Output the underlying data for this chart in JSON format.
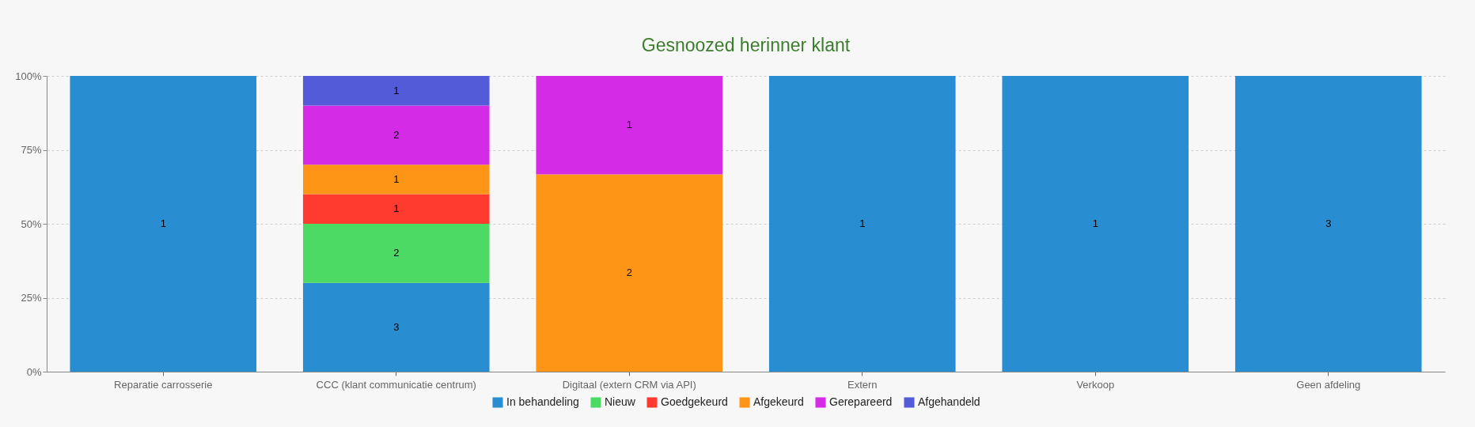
{
  "chart_data": {
    "type": "bar",
    "title": "Gesnoozed herinner klant",
    "categories": [
      "Reparatie carrosserie",
      "CCC (klant communicatie centrum)",
      "Digitaal (extern CRM via API)",
      "Extern",
      "Verkoop",
      "Geen afdeling"
    ],
    "stacked": true,
    "ylim": [
      0,
      100
    ],
    "yticks": [
      {
        "value": 0,
        "label": "0%"
      },
      {
        "value": 25,
        "label": "25%"
      },
      {
        "value": 50,
        "label": "50%"
      },
      {
        "value": 75,
        "label": "75%"
      },
      {
        "value": 100,
        "label": "100%"
      }
    ],
    "grid": "y",
    "legend": "bottom",
    "series": [
      {
        "name": "In behandeling",
        "color": "#288ed1",
        "values": [
          100,
          30,
          null,
          100,
          100,
          100
        ]
      },
      {
        "name": "Nieuw",
        "color": "#4cd964",
        "values": [
          null,
          20,
          null,
          null,
          null,
          null
        ]
      },
      {
        "name": "Goedgekeurd",
        "color": "#ff3b30",
        "values": [
          null,
          10,
          null,
          null,
          null,
          null
        ]
      },
      {
        "name": "Afgekeurd",
        "color": "#ff9517",
        "values": [
          null,
          10,
          66.7,
          null,
          null,
          null
        ]
      },
      {
        "name": "Gerepareerd",
        "color": "#d42be6",
        "values": [
          null,
          20,
          33.3,
          null,
          null,
          null
        ]
      },
      {
        "name": "Afgehandeld",
        "color": "#535bd9",
        "values": [
          null,
          10,
          null,
          null,
          null,
          null
        ]
      }
    ],
    "annotations": [
      "1",
      "3",
      "2",
      "1",
      "1",
      "2",
      "1",
      "2",
      "1",
      "1",
      "1",
      "3"
    ]
  }
}
